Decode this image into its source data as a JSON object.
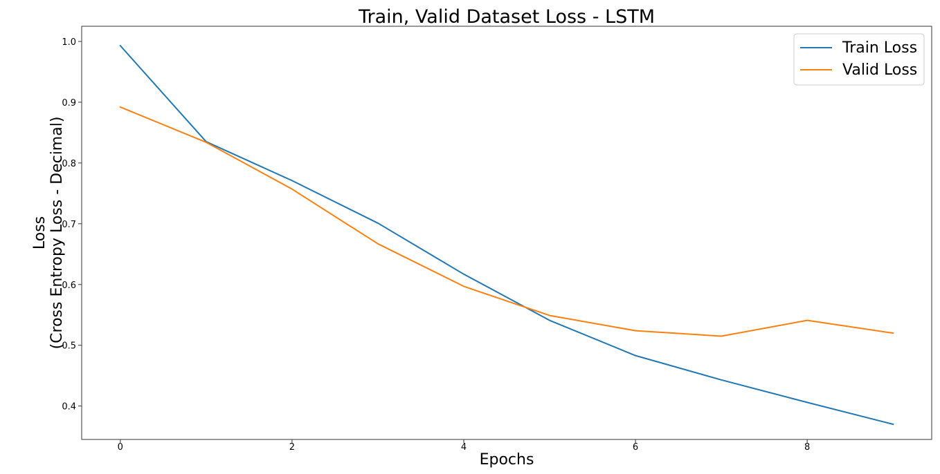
{
  "chart_data": {
    "type": "line",
    "title": "Train, Valid Dataset Loss - LSTM",
    "xlabel": "Epochs",
    "ylabel_line1": "Loss",
    "ylabel_line2": "(Cross Entropy Loss - Decimal)",
    "x": [
      0,
      1,
      2,
      3,
      4,
      5,
      6,
      7,
      8,
      9
    ],
    "xlim": [
      -0.45,
      9.45
    ],
    "ylim": [
      0.345,
      1.025
    ],
    "x_ticks": [
      0,
      2,
      4,
      6,
      8
    ],
    "y_ticks": [
      0.4,
      0.5,
      0.6,
      0.7,
      0.8,
      0.9,
      1.0
    ],
    "x_tick_labels": [
      "0",
      "2",
      "4",
      "6",
      "8"
    ],
    "y_tick_labels": [
      "0.4",
      "0.5",
      "0.6",
      "0.7",
      "0.8",
      "0.9",
      "1.0"
    ],
    "grid": false,
    "legend_position": "top-right",
    "series": [
      {
        "name": "Train Loss",
        "color": "#1f77b4",
        "values": [
          0.993,
          0.835,
          0.771,
          0.701,
          0.617,
          0.541,
          0.483,
          0.443,
          0.406,
          0.37
        ]
      },
      {
        "name": "Valid Loss",
        "color": "#ff7f0e",
        "values": [
          0.892,
          0.834,
          0.757,
          0.667,
          0.597,
          0.549,
          0.524,
          0.515,
          0.541,
          0.52
        ]
      }
    ]
  }
}
